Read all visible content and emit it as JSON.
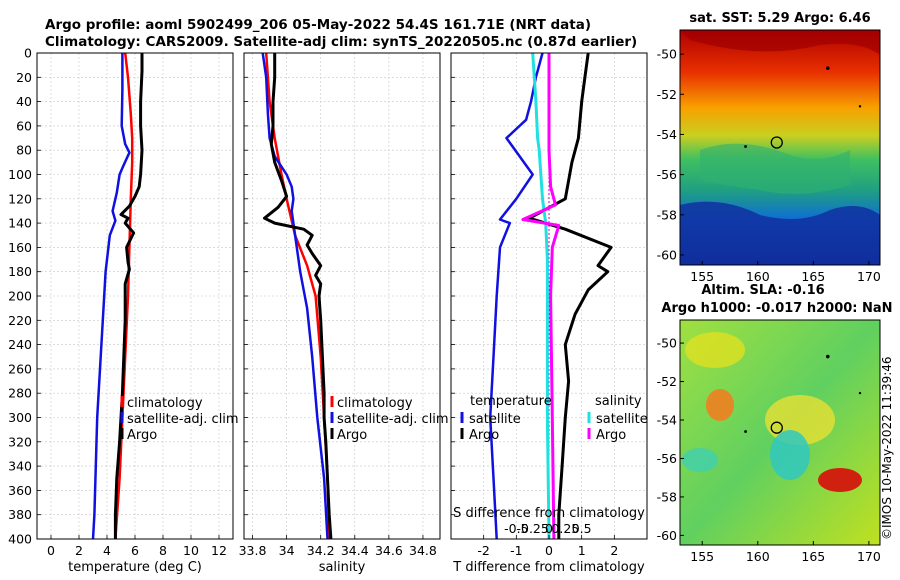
{
  "title": {
    "line1": "Argo profile: aoml 5902499_206 05-May-2022 54.4S 161.71E (NRT data)",
    "line2": "Climatology: CARS2009. Satellite-adj clim: synTS_20220505.nc (0.87d earlier)"
  },
  "credit": "©IMOS 10-May-2022 11:39:46",
  "colors": {
    "climatology": "#ff0000",
    "satellite": "#1010e0",
    "argo": "#000000",
    "sat_salinity": "#20e0e0",
    "argo_salinity": "#ff00ff"
  },
  "depth_axis": {
    "min": 0,
    "max": 400,
    "ticks": [
      0,
      20,
      40,
      60,
      80,
      100,
      120,
      140,
      160,
      180,
      200,
      220,
      240,
      260,
      280,
      300,
      320,
      340,
      360,
      380,
      400
    ]
  },
  "chart_data": [
    {
      "id": "temperature",
      "type": "line",
      "xlabel": "temperature (deg C)",
      "xlim": [
        -1,
        13
      ],
      "xticks": [
        0,
        2,
        4,
        6,
        8,
        10,
        12
      ],
      "ylim": [
        400,
        0
      ],
      "legend": [
        "climatology",
        "satellite-adj. clim",
        "Argo"
      ],
      "series": [
        {
          "name": "climatology",
          "color": "#ff0000",
          "width": 2.5,
          "points": [
            [
              5.3,
              0
            ],
            [
              5.5,
              20
            ],
            [
              5.7,
              50
            ],
            [
              5.8,
              70
            ],
            [
              5.8,
              90
            ],
            [
              5.7,
              120
            ],
            [
              5.6,
              160
            ],
            [
              5.5,
              200
            ],
            [
              5.3,
              250
            ],
            [
              5.1,
              300
            ],
            [
              4.9,
              350
            ],
            [
              4.6,
              400
            ]
          ]
        },
        {
          "name": "satellite-adj. clim",
          "color": "#1010e0",
          "width": 2.5,
          "points": [
            [
              5.1,
              0
            ],
            [
              5.1,
              30
            ],
            [
              5.05,
              60
            ],
            [
              5.3,
              75
            ],
            [
              5.6,
              82
            ],
            [
              5.2,
              92
            ],
            [
              4.9,
              100
            ],
            [
              4.7,
              115
            ],
            [
              4.4,
              130
            ],
            [
              4.6,
              138
            ],
            [
              4.2,
              150
            ],
            [
              3.9,
              180
            ],
            [
              3.7,
              220
            ],
            [
              3.5,
              260
            ],
            [
              3.3,
              300
            ],
            [
              3.2,
              340
            ],
            [
              3.1,
              380
            ],
            [
              3.0,
              400
            ]
          ]
        },
        {
          "name": "Argo",
          "color": "#000000",
          "width": 3,
          "points": [
            [
              6.5,
              0
            ],
            [
              6.5,
              15
            ],
            [
              6.4,
              40
            ],
            [
              6.4,
              60
            ],
            [
              6.5,
              80
            ],
            [
              6.4,
              100
            ],
            [
              6.3,
              110
            ],
            [
              6.0,
              118
            ],
            [
              5.6,
              126
            ],
            [
              5.0,
              133
            ],
            [
              5.5,
              136
            ],
            [
              5.3,
              140
            ],
            [
              5.9,
              148
            ],
            [
              5.4,
              160
            ],
            [
              5.5,
              172
            ],
            [
              5.6,
              178
            ],
            [
              5.3,
              190
            ],
            [
              5.3,
              220
            ],
            [
              5.2,
              250
            ],
            [
              5.1,
              280
            ],
            [
              5.0,
              300
            ],
            [
              4.9,
              320
            ],
            [
              4.7,
              350
            ],
            [
              4.6,
              380
            ],
            [
              4.6,
              400
            ]
          ]
        }
      ]
    },
    {
      "id": "salinity",
      "type": "line",
      "xlabel": "salinity",
      "xlim": [
        33.75,
        34.9
      ],
      "xticks": [
        33.8,
        34,
        34.2,
        34.4,
        34.6,
        34.8
      ],
      "xtick_labels": [
        "33.8",
        "34",
        "34.2",
        "34.4",
        "34.6",
        "34.8"
      ],
      "ylim": [
        400,
        0
      ],
      "legend": [
        "climatology",
        "satellite-adj. clim",
        "Argo"
      ],
      "series": [
        {
          "name": "climatology",
          "color": "#ff0000",
          "width": 2.5,
          "points": [
            [
              33.88,
              0
            ],
            [
              33.9,
              40
            ],
            [
              33.93,
              70
            ],
            [
              33.97,
              100
            ],
            [
              34.0,
              120
            ],
            [
              34.05,
              150
            ],
            [
              34.12,
              175
            ],
            [
              34.17,
              200
            ],
            [
              34.2,
              250
            ],
            [
              34.22,
              300
            ],
            [
              34.24,
              350
            ],
            [
              34.25,
              400
            ]
          ]
        },
        {
          "name": "satellite-adj. clim",
          "color": "#1010e0",
          "width": 2.5,
          "points": [
            [
              33.86,
              0
            ],
            [
              33.88,
              20
            ],
            [
              33.89,
              50
            ],
            [
              33.9,
              70
            ],
            [
              33.93,
              85
            ],
            [
              34.0,
              100
            ],
            [
              34.03,
              110
            ],
            [
              34.04,
              120
            ],
            [
              34.03,
              130
            ],
            [
              34.05,
              150
            ],
            [
              34.08,
              180
            ],
            [
              34.12,
              210
            ],
            [
              34.15,
              250
            ],
            [
              34.18,
              300
            ],
            [
              34.22,
              350
            ],
            [
              34.24,
              400
            ]
          ]
        },
        {
          "name": "Argo",
          "color": "#000000",
          "width": 3,
          "points": [
            [
              33.93,
              0
            ],
            [
              33.93,
              20
            ],
            [
              33.92,
              40
            ],
            [
              33.92,
              60
            ],
            [
              33.91,
              75
            ],
            [
              33.93,
              90
            ],
            [
              33.97,
              105
            ],
            [
              34.0,
              118
            ],
            [
              33.95,
              127
            ],
            [
              33.87,
              136
            ],
            [
              33.93,
              140
            ],
            [
              34.1,
              145
            ],
            [
              34.15,
              150
            ],
            [
              34.12,
              158
            ],
            [
              34.15,
              165
            ],
            [
              34.2,
              175
            ],
            [
              34.17,
              183
            ],
            [
              34.2,
              190
            ],
            [
              34.19,
              200
            ],
            [
              34.2,
              220
            ],
            [
              34.21,
              250
            ],
            [
              34.22,
              280
            ],
            [
              34.22,
              300
            ],
            [
              34.23,
              320
            ],
            [
              34.24,
              350
            ],
            [
              34.25,
              380
            ],
            [
              34.26,
              400
            ]
          ]
        }
      ]
    },
    {
      "id": "difference",
      "type": "line",
      "xlabel": "T difference from climatology",
      "xlabel_top": "S difference from climatology",
      "xlim": [
        -3,
        3
      ],
      "xticks": [
        -2,
        -1,
        0,
        1,
        2
      ],
      "xtick_labels": [
        "-2",
        "-1",
        "0",
        "1",
        "2"
      ],
      "top_tick_values": [
        "-0.5",
        "-0.25",
        "0",
        "0.25",
        "0.5"
      ],
      "top_tick_positions_T": [
        -2,
        -1,
        0,
        1,
        2
      ],
      "ylim": [
        400,
        0
      ],
      "legend_left_title": "temperature",
      "legend_left": [
        "satellite",
        "Argo"
      ],
      "legend_right_title": "salinity",
      "legend_right": [
        "satellite",
        "Argo"
      ],
      "series": [
        {
          "name": "T satellite",
          "color": "#1010e0",
          "width": 2.5,
          "points": [
            [
              -0.2,
              0
            ],
            [
              -0.4,
              20
            ],
            [
              -0.55,
              40
            ],
            [
              -0.7,
              55
            ],
            [
              -1.3,
              70
            ],
            [
              -0.5,
              100
            ],
            [
              -1.0,
              120
            ],
            [
              -1.5,
              137
            ],
            [
              -1.2,
              140
            ],
            [
              -1.5,
              160
            ],
            [
              -1.6,
              200
            ],
            [
              -1.7,
              250
            ],
            [
              -1.8,
              300
            ],
            [
              -1.7,
              350
            ],
            [
              -1.6,
              400
            ]
          ]
        },
        {
          "name": "T Argo",
          "color": "#000000",
          "width": 3,
          "points": [
            [
              1.2,
              0
            ],
            [
              1.1,
              20
            ],
            [
              1.0,
              40
            ],
            [
              0.9,
              70
            ],
            [
              0.7,
              90
            ],
            [
              0.6,
              105
            ],
            [
              0.5,
              120
            ],
            [
              -0.6,
              136
            ],
            [
              0.5,
              145
            ],
            [
              1.9,
              160
            ],
            [
              1.5,
              175
            ],
            [
              1.8,
              180
            ],
            [
              1.2,
              195
            ],
            [
              0.8,
              215
            ],
            [
              0.5,
              240
            ],
            [
              0.6,
              270
            ],
            [
              0.5,
              300
            ],
            [
              0.4,
              340
            ],
            [
              0.3,
              380
            ],
            [
              0.3,
              400
            ]
          ]
        },
        {
          "name": "S satellite",
          "color": "#20e0e0",
          "width": 3,
          "points": [
            [
              -0.5,
              0
            ],
            [
              -0.45,
              20
            ],
            [
              -0.4,
              40
            ],
            [
              -0.35,
              70
            ],
            [
              -0.3,
              80
            ],
            [
              -0.2,
              120
            ],
            [
              -0.1,
              140
            ],
            [
              -0.05,
              170
            ],
            [
              -0.05,
              220
            ],
            [
              -0.05,
              300
            ],
            [
              0.0,
              400
            ]
          ]
        },
        {
          "name": "S Argo",
          "color": "#ff00ff",
          "width": 3,
          "points": [
            [
              0.0,
              0
            ],
            [
              0.0,
              80
            ],
            [
              0.05,
              110
            ],
            [
              0.2,
              125
            ],
            [
              -0.8,
              137
            ],
            [
              0.3,
              142
            ],
            [
              0.1,
              160
            ],
            [
              0.05,
              200
            ],
            [
              0.1,
              300
            ],
            [
              0.15,
              400
            ]
          ]
        }
      ],
      "zero_line": true
    }
  ],
  "maps": [
    {
      "id": "sst-map",
      "title": "sat. SST: 5.29 Argo: 6.46",
      "xticks": [
        155,
        160,
        165,
        170
      ],
      "yticks": [
        -50,
        -52,
        -54,
        -56,
        -58,
        -60
      ],
      "xlim": [
        153,
        171
      ],
      "ylim": [
        -60.5,
        -48.8
      ],
      "argo_marker": [
        161.71,
        -54.4
      ]
    },
    {
      "id": "sla-map",
      "title_line1": "Altim. SLA: -0.16",
      "title_line2": "Argo h1000: -0.017 h2000: NaN",
      "xticks": [
        155,
        160,
        165,
        170
      ],
      "yticks": [
        -50,
        -52,
        -54,
        -56,
        -58,
        -60
      ],
      "xlim": [
        153,
        171
      ],
      "ylim": [
        -60.5,
        -48.8
      ],
      "argo_marker": [
        161.71,
        -54.4
      ]
    }
  ]
}
